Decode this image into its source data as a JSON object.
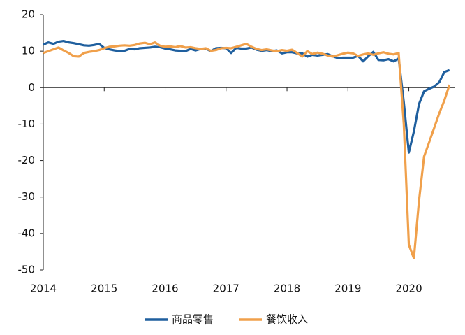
{
  "chart_data": {
    "type": "line",
    "x": [
      2014,
      2014.083,
      2014.167,
      2014.25,
      2014.333,
      2014.417,
      2014.5,
      2014.583,
      2014.667,
      2014.75,
      2014.833,
      2014.917,
      2015,
      2015.083,
      2015.167,
      2015.25,
      2015.333,
      2015.417,
      2015.5,
      2015.583,
      2015.667,
      2015.75,
      2015.833,
      2015.917,
      2016,
      2016.083,
      2016.167,
      2016.25,
      2016.333,
      2016.417,
      2016.5,
      2016.583,
      2016.667,
      2016.75,
      2016.833,
      2016.917,
      2017,
      2017.083,
      2017.167,
      2017.25,
      2017.333,
      2017.417,
      2017.5,
      2017.583,
      2017.667,
      2017.75,
      2017.833,
      2017.917,
      2018,
      2018.083,
      2018.167,
      2018.25,
      2018.333,
      2018.417,
      2018.5,
      2018.583,
      2018.667,
      2018.75,
      2018.833,
      2018.917,
      2019,
      2019.083,
      2019.167,
      2019.25,
      2019.333,
      2019.417,
      2019.5,
      2019.583,
      2019.667,
      2019.75,
      2019.833,
      2019.917,
      2020,
      2020.083,
      2020.167,
      2020.25,
      2020.333,
      2020.417,
      2020.5,
      2020.583,
      2020.667
    ],
    "series": [
      {
        "name": "商品零售",
        "color": "#1f5f9e",
        "values": [
          11.8,
          12.4,
          12.0,
          12.6,
          12.8,
          12.4,
          12.2,
          11.9,
          11.6,
          11.5,
          11.7,
          12.0,
          10.9,
          10.5,
          10.2,
          10.0,
          10.1,
          10.6,
          10.5,
          10.8,
          10.9,
          11.0,
          11.2,
          11.1,
          10.7,
          10.5,
          10.2,
          10.1,
          10.0,
          10.6,
          10.2,
          10.6,
          10.7,
          10.0,
          10.8,
          10.9,
          10.8,
          9.5,
          10.9,
          10.7,
          10.7,
          11.0,
          10.4,
          10.1,
          10.3,
          10.0,
          10.2,
          9.4,
          9.7,
          9.7,
          9.4,
          9.4,
          8.5,
          9.0,
          8.8,
          9.0,
          9.2,
          8.6,
          8.1,
          8.2,
          8.2,
          8.2,
          8.7,
          7.2,
          8.6,
          9.8,
          7.6,
          7.5,
          7.8,
          7.2,
          8.0,
          -4,
          -17.8,
          -12,
          -4.5,
          -1.0,
          -0.3,
          0.3,
          1.5,
          4.3,
          4.8
        ]
      },
      {
        "name": "餐饮收入",
        "color": "#f0a04b",
        "values": [
          9.5,
          10.0,
          10.5,
          11.0,
          10.2,
          9.5,
          8.6,
          8.5,
          9.5,
          9.8,
          10.0,
          10.3,
          10.8,
          11.2,
          11.3,
          11.5,
          11.6,
          11.5,
          11.7,
          12.1,
          12.3,
          11.9,
          12.4,
          11.5,
          11.2,
          11.3,
          11.1,
          11.4,
          11.0,
          11.1,
          10.8,
          10.6,
          10.8,
          10.1,
          10.3,
          10.8,
          10.9,
          10.8,
          11.2,
          11.6,
          12.0,
          11.2,
          10.6,
          10.3,
          10.5,
          10.2,
          10.0,
          10.3,
          10.1,
          10.4,
          9.5,
          8.5,
          10.0,
          9.2,
          9.6,
          9.3,
          8.8,
          8.5,
          8.9,
          9.3,
          9.6,
          9.4,
          8.7,
          9.1,
          9.4,
          9.0,
          9.4,
          9.7,
          9.3,
          9.1,
          9.5,
          -10,
          -43.1,
          -46.8,
          -31,
          -18.9,
          -15,
          -11,
          -7,
          -3.5,
          0.8
        ]
      }
    ],
    "xlim": [
      2014,
      2020.75
    ],
    "xticks": [
      2014,
      2015,
      2016,
      2017,
      2018,
      2019,
      2020
    ],
    "ylim": [
      -50,
      20
    ],
    "yticks": [
      -50,
      -40,
      -30,
      -20,
      -10,
      0,
      10,
      20
    ]
  }
}
